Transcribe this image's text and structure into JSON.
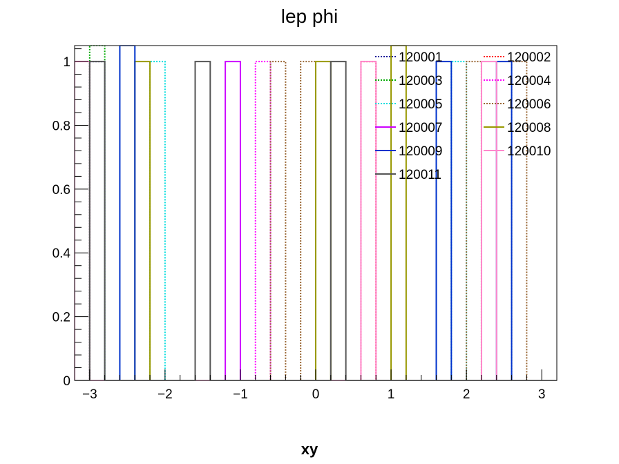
{
  "chart_data": {
    "type": "histogram-step",
    "title": "lep phi",
    "xlabel": "xy",
    "ylabel": "",
    "xlim": [
      -3.2,
      3.2
    ],
    "ylim": [
      0,
      1.05
    ],
    "bin_width": 0.2,
    "xticks": [
      -3,
      -2,
      -1,
      0,
      1,
      2,
      3
    ],
    "xtick_labels": [
      "−3",
      "−2",
      "−1",
      "0",
      "1",
      "2",
      "3"
    ],
    "yticks": [
      0,
      0.2,
      0.4,
      0.6,
      0.8,
      1
    ],
    "ytick_labels": [
      "0",
      "0.2",
      "0.4",
      "0.6",
      "0.8",
      "1"
    ],
    "grid": false,
    "legend_position": "top-right",
    "series": [
      {
        "name": "120001",
        "color": "#000099",
        "dashed": true,
        "bins": [
          [
            -3.0,
            1.0
          ]
        ]
      },
      {
        "name": "120002",
        "color": "#ff0000",
        "dashed": true,
        "bins": [
          [
            0.6,
            1.0
          ]
        ]
      },
      {
        "name": "120003",
        "color": "#00aa00",
        "dashed": true,
        "bins": [
          [
            -3.0,
            1.05
          ]
        ]
      },
      {
        "name": "120004",
        "color": "#ff00ff",
        "dashed": true,
        "bins": [
          [
            -0.8,
            1.0
          ]
        ]
      },
      {
        "name": "120005",
        "color": "#00dddd",
        "dashed": true,
        "bins": [
          [
            -2.2,
            1.0
          ],
          [
            1.8,
            1.0
          ]
        ]
      },
      {
        "name": "120006",
        "color": "#996633",
        "dashed": true,
        "bins": [
          [
            -0.6,
            1.0
          ],
          [
            -0.2,
            1.0
          ],
          [
            2.0,
            1.0
          ],
          [
            2.6,
            1.0
          ]
        ]
      },
      {
        "name": "120007",
        "color": "#cc00ff",
        "dashed": false,
        "bins": [
          [
            -1.2,
            1.0
          ]
        ]
      },
      {
        "name": "120008",
        "color": "#999900",
        "dashed": false,
        "bins": [
          [
            -2.4,
            1.0
          ],
          [
            0.0,
            1.0
          ],
          [
            1.0,
            1.05
          ]
        ]
      },
      {
        "name": "120009",
        "color": "#0033cc",
        "dashed": false,
        "bins": [
          [
            -2.6,
            1.05
          ],
          [
            1.6,
            1.0
          ],
          [
            2.4,
            1.0
          ]
        ]
      },
      {
        "name": "120010",
        "color": "#ff88cc",
        "dashed": false,
        "bins": [
          [
            -3.2,
            1.0
          ],
          [
            0.6,
            1.0
          ],
          [
            2.2,
            1.0
          ]
        ]
      },
      {
        "name": "120011",
        "color": "#555555",
        "dashed": false,
        "bins": [
          [
            -3.0,
            1.0
          ],
          [
            -1.6,
            1.0
          ],
          [
            0.2,
            1.0
          ]
        ]
      }
    ]
  }
}
